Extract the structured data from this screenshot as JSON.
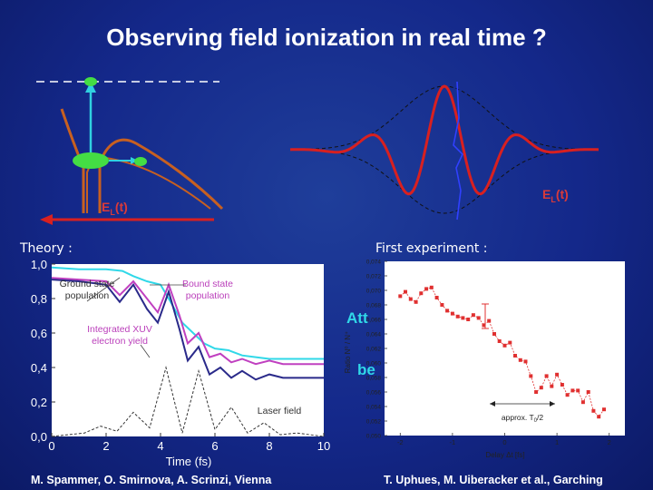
{
  "title": "Observing field ionization in real time ?",
  "top_diagram": {
    "field_label_left": "E_L(t)",
    "field_label_right": "E_L(t)",
    "subscript": "L",
    "base": "E",
    "arg": "(t)"
  },
  "theory": {
    "label": "Theory :",
    "credit": "M. Spammer, O. Smirnova, A. Scrinzi, Vienna",
    "annotations": {
      "ground": [
        "Ground state",
        "population"
      ],
      "bound": [
        "Bound state",
        "population"
      ],
      "xuv": [
        "Integrated XUV",
        "electron yield"
      ],
      "laser": "Laser field"
    },
    "colors": {
      "ground": "#2a2a8a",
      "bound": "#c040c0",
      "xuv": "#30d8e8",
      "laser": "#333333"
    },
    "chart_data": {
      "type": "line",
      "xlabel": "Time (fs)",
      "ylabel": "",
      "xlim": [
        0,
        10
      ],
      "ylim": [
        0,
        1.0
      ],
      "x_ticks": [
        "0",
        "2",
        "4",
        "6",
        "8",
        "10"
      ],
      "y_ticks": [
        "0,0",
        "0,2",
        "0,4",
        "0,6",
        "0,8",
        "1,0"
      ],
      "series": [
        {
          "name": "Integrated XUV electron yield",
          "x": [
            0,
            1,
            2,
            2.6,
            3,
            3.5,
            4,
            4.3,
            4.8,
            5.2,
            5.6,
            6,
            6.5,
            7,
            7.5,
            8,
            8.5,
            9,
            10
          ],
          "y": [
            0.98,
            0.97,
            0.97,
            0.96,
            0.93,
            0.9,
            0.88,
            0.8,
            0.66,
            0.6,
            0.54,
            0.51,
            0.5,
            0.47,
            0.46,
            0.45,
            0.45,
            0.45,
            0.45
          ]
        },
        {
          "name": "Bound state population",
          "x": [
            0,
            1,
            2,
            2.5,
            3,
            3.5,
            3.9,
            4.3,
            4.7,
            5,
            5.4,
            5.8,
            6.2,
            6.6,
            7,
            7.5,
            8,
            8.5,
            9,
            10
          ],
          "y": [
            0.92,
            0.91,
            0.9,
            0.82,
            0.9,
            0.8,
            0.72,
            0.88,
            0.7,
            0.54,
            0.6,
            0.46,
            0.48,
            0.43,
            0.45,
            0.42,
            0.44,
            0.42,
            0.42,
            0.42
          ]
        },
        {
          "name": "Ground state population",
          "x": [
            0,
            1,
            2,
            2.5,
            3,
            3.5,
            3.9,
            4.3,
            4.7,
            5,
            5.4,
            5.8,
            6.2,
            6.6,
            7,
            7.5,
            8,
            8.5,
            9,
            10
          ],
          "y": [
            0.91,
            0.9,
            0.88,
            0.78,
            0.88,
            0.74,
            0.66,
            0.84,
            0.62,
            0.44,
            0.52,
            0.36,
            0.4,
            0.34,
            0.38,
            0.33,
            0.36,
            0.34,
            0.34,
            0.34
          ]
        },
        {
          "name": "Laser field",
          "x": [
            0,
            1.2,
            1.8,
            2.4,
            3,
            3.6,
            4.2,
            4.8,
            5.4,
            6,
            6.6,
            7.2,
            7.8,
            8.4,
            9,
            10
          ],
          "y": [
            0,
            0.02,
            0.06,
            0.03,
            0.14,
            0.05,
            0.4,
            0.02,
            0.38,
            0.04,
            0.17,
            0.02,
            0.08,
            0.01,
            0.02,
            0
          ]
        }
      ]
    }
  },
  "experiment": {
    "label": "First experiment :",
    "credit": "T. Uphues, M. Uiberacker et al., Garching",
    "annotation": "approx. T",
    "annotation_sub": "0",
    "annotation_tail": "/2",
    "overlay_text_1": "Att",
    "overlay_text_2": "be",
    "series_color": "#e03030",
    "chart_data": {
      "type": "scatter",
      "xlabel": "Delay Δt [fs]",
      "ylabel": "Ratio N⁰ / N⁺",
      "xlim": [
        -2.3,
        2.3
      ],
      "ylim": [
        0.05,
        0.074
      ],
      "x_ticks": [
        "-2",
        "-1",
        "0",
        "1",
        "2"
      ],
      "y_ticks": [
        "0,050",
        "0,052",
        "0,054",
        "0,056",
        "0,058",
        "0,060",
        "0,062",
        "0,064",
        "0,066",
        "0,068",
        "0,070",
        "0,072",
        "0,074"
      ],
      "x": [
        -2.0,
        -1.9,
        -1.8,
        -1.7,
        -1.6,
        -1.5,
        -1.4,
        -1.3,
        -1.2,
        -1.1,
        -1.0,
        -0.9,
        -0.8,
        -0.7,
        -0.6,
        -0.5,
        -0.4,
        -0.3,
        -0.2,
        -0.1,
        0.0,
        0.1,
        0.2,
        0.3,
        0.4,
        0.5,
        0.6,
        0.7,
        0.8,
        0.9,
        1.0,
        1.1,
        1.2,
        1.3,
        1.4,
        1.5,
        1.6,
        1.7,
        1.8,
        1.9
      ],
      "y": [
        0.0692,
        0.0698,
        0.0688,
        0.0684,
        0.0696,
        0.0702,
        0.0704,
        0.069,
        0.068,
        0.0672,
        0.0668,
        0.0664,
        0.0662,
        0.066,
        0.0666,
        0.0662,
        0.0652,
        0.0658,
        0.064,
        0.063,
        0.0624,
        0.0628,
        0.061,
        0.0604,
        0.0602,
        0.0582,
        0.056,
        0.0566,
        0.0582,
        0.0568,
        0.0584,
        0.057,
        0.0556,
        0.0562,
        0.0562,
        0.0546,
        0.056,
        0.0534,
        0.0526,
        0.0536
      ]
    }
  }
}
